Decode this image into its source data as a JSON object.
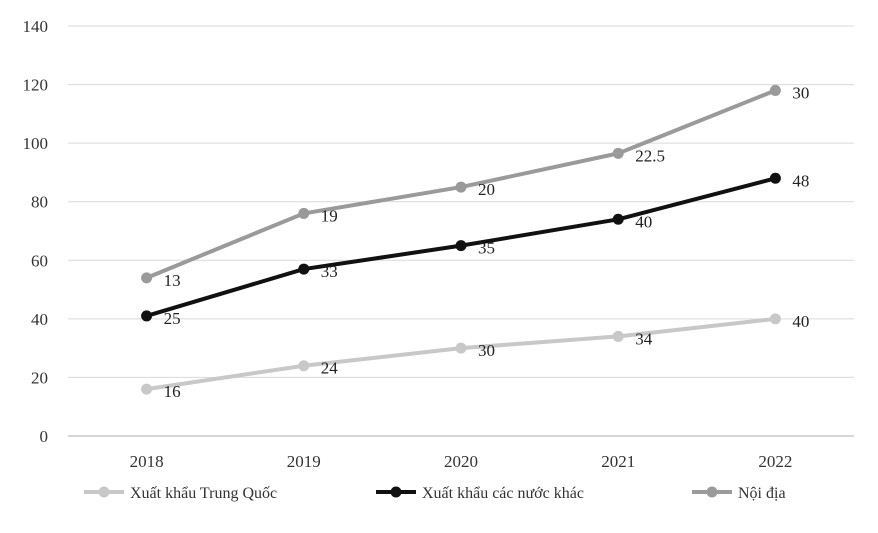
{
  "chart_data": {
    "type": "line",
    "title": "",
    "xlabel": "",
    "ylabel": "",
    "x": [
      "2018",
      "2019",
      "2020",
      "2021",
      "2022"
    ],
    "ylim": [
      0,
      140
    ],
    "yticks": [
      "0",
      "20",
      "40",
      "60",
      "80",
      "100",
      "120",
      "140"
    ],
    "grid": true,
    "legend_position": "bottom",
    "series": [
      {
        "name": "Xuất khẩu Trung Quốc",
        "color": "#c8c8c8",
        "values": [
          16,
          24,
          30,
          34,
          40
        ],
        "labels": [
          "16",
          "24",
          "30",
          "34",
          "40"
        ]
      },
      {
        "name": "Xuất khẩu các nước khác",
        "color": "#111111",
        "values": [
          41,
          57,
          65,
          74,
          88
        ],
        "labels": [
          "25",
          "33",
          "35",
          "40",
          "48"
        ]
      },
      {
        "name": "Nội địa",
        "color": "#9a9a9a",
        "values": [
          54,
          76,
          85,
          96.5,
          118
        ],
        "labels": [
          "13",
          "19",
          "20",
          "22.5",
          "30"
        ]
      }
    ]
  }
}
